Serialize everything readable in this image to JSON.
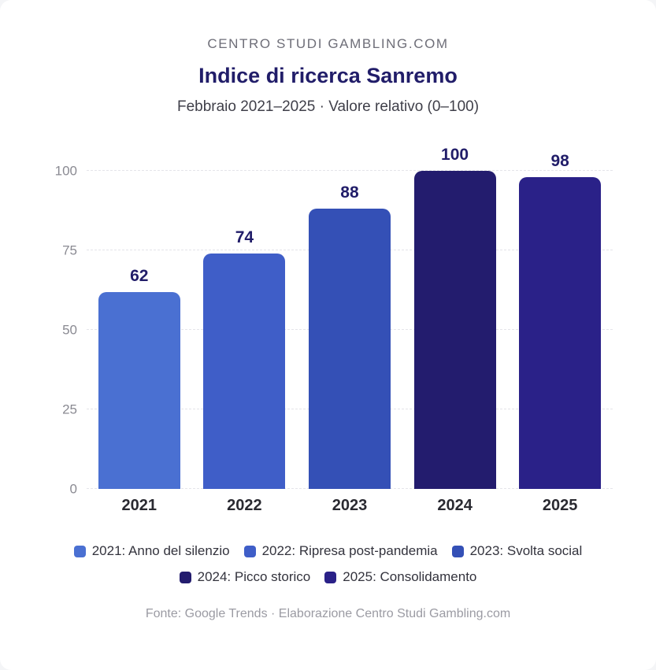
{
  "header": {
    "eyebrow": "CENTRO STUDI GAMBLING.COM",
    "title": "Indice di ricerca Sanremo",
    "subtitle": "Febbraio 2021–2025 · Valore relativo (0–100)"
  },
  "chart_data": {
    "type": "bar",
    "title": "Indice di ricerca Sanremo",
    "subtitle": "Febbraio 2021–2025 · Valore relativo (0–100)",
    "categories": [
      "2021",
      "2022",
      "2023",
      "2024",
      "2025"
    ],
    "values": [
      62,
      74,
      88,
      100,
      98
    ],
    "bar_colors": [
      "#4a70d2",
      "#3f5ec8",
      "#3450b6",
      "#231c6e",
      "#2a2188"
    ],
    "xlabel": "",
    "ylabel": "",
    "ylim": [
      0,
      100
    ],
    "yticks": [
      0,
      25,
      50,
      75,
      100
    ],
    "grid": true,
    "grid_style": "dashed-horizontal",
    "legend_position": "bottom",
    "legend": [
      {
        "label": "2021: Anno del silenzio",
        "color": "#4a70d2"
      },
      {
        "label": "2022: Ripresa post-pandemia",
        "color": "#3f5ec8"
      },
      {
        "label": "2023: Svolta social",
        "color": "#3450b6"
      },
      {
        "label": "2024: Picco storico",
        "color": "#231c6e"
      },
      {
        "label": "2025: Consolidamento",
        "color": "#2a2188"
      }
    ]
  },
  "footer": {
    "source": "Fonte: Google Trends · Elaborazione Centro Studi Gambling.com"
  },
  "colors": {
    "title": "#211d69",
    "value_label": "#211d69",
    "y_tick": "#8a8a92",
    "x_tick": "#2a2a31",
    "gridline": "#e4e4e9",
    "legend_text": "#33333d",
    "footer_text": "#9b9ba3"
  }
}
